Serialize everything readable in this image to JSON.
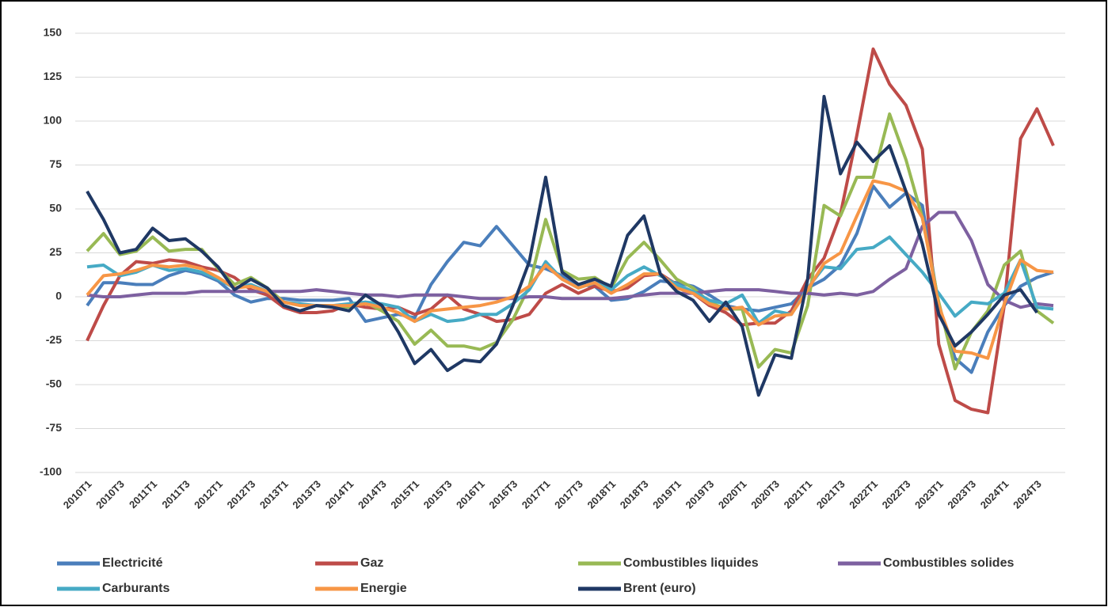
{
  "chart_data": {
    "type": "line",
    "categories": [
      "2010T1",
      null,
      "2010T3",
      null,
      "2011T1",
      null,
      "2011T3",
      null,
      "2012T1",
      null,
      "2012T3",
      null,
      "2013T1",
      null,
      "2013T3",
      null,
      "2014T1",
      null,
      "2014T3",
      null,
      "2015T1",
      null,
      "2015T3",
      null,
      "2016T1",
      null,
      "2016T3",
      null,
      "2017T1",
      null,
      "2017T3",
      null,
      "2018T1",
      null,
      "2018T3",
      null,
      "2019T1",
      null,
      "2019T3",
      null,
      "2020T1",
      null,
      "2020T3",
      null,
      "2021T1",
      null,
      "2021T3",
      null,
      "2022T1",
      null,
      "2022T3",
      null,
      "2023T1",
      null,
      "2023T3",
      null,
      "2024T1",
      null,
      "2024T3",
      null
    ],
    "ylim": [
      -100,
      150
    ],
    "yticks": [
      -100,
      -75,
      -50,
      -25,
      0,
      25,
      50,
      75,
      100,
      125,
      150
    ],
    "grid": true,
    "legend": "bottom",
    "series": [
      {
        "name": "Electricité",
        "color": "#4a7ebb",
        "values": [
          -5,
          8,
          8,
          7,
          7,
          12,
          15,
          13,
          9,
          1,
          -3,
          -1,
          -1,
          -2,
          -2,
          -2,
          -1,
          -14,
          -12,
          -10,
          -12,
          7,
          20,
          31,
          29,
          40,
          29,
          18,
          16,
          12,
          7,
          6,
          -2,
          -1,
          3,
          9,
          8,
          6,
          1,
          -5,
          -7,
          -8,
          -6,
          -4,
          5,
          10,
          18,
          36,
          63,
          51,
          59,
          52,
          -5,
          -35,
          -43,
          -20,
          -5,
          6,
          11,
          14
        ]
      },
      {
        "name": "Gaz",
        "color": "#be4b48",
        "values": [
          -25,
          -5,
          12,
          20,
          19,
          21,
          20,
          17,
          15,
          11,
          4,
          1,
          -6,
          -9,
          -9,
          -8,
          -4,
          -6,
          -7,
          -6,
          -10,
          -7,
          1,
          -7,
          -10,
          -14,
          -13,
          -10,
          2,
          7,
          2,
          6,
          3,
          5,
          12,
          13,
          7,
          2,
          -5,
          -9,
          -16,
          -15,
          -15,
          -8,
          10,
          22,
          47,
          92,
          141,
          121,
          109,
          84,
          -27,
          -59,
          -64,
          -66,
          -5,
          90,
          107,
          86
        ]
      },
      {
        "name": "Combustibles liquides",
        "color": "#98b954",
        "values": [
          26,
          36,
          24,
          26,
          34,
          26,
          27,
          27,
          16,
          7,
          11,
          5,
          -3,
          -5,
          -5,
          -5,
          -6,
          -3,
          -8,
          -14,
          -27,
          -19,
          -28,
          -28,
          -30,
          -26,
          -13,
          6,
          44,
          15,
          10,
          11,
          5,
          22,
          31,
          21,
          10,
          5,
          -3,
          -7,
          -7,
          -40,
          -30,
          -32,
          -5,
          52,
          46,
          68,
          68,
          104,
          78,
          45,
          -3,
          -41,
          -20,
          -8,
          18,
          26,
          -8,
          -15
        ]
      },
      {
        "name": "Combustibles solides",
        "color": "#7d60a0",
        "values": [
          1,
          0,
          0,
          1,
          2,
          2,
          2,
          3,
          3,
          3,
          3,
          3,
          3,
          3,
          4,
          3,
          2,
          1,
          1,
          0,
          1,
          1,
          1,
          0,
          -1,
          -1,
          -1,
          0,
          0,
          -1,
          -1,
          -1,
          -1,
          0,
          1,
          2,
          2,
          2,
          3,
          4,
          4,
          4,
          3,
          2,
          2,
          1,
          2,
          1,
          3,
          10,
          16,
          40,
          48,
          48,
          32,
          7,
          -2,
          -6,
          -4,
          -5
        ]
      },
      {
        "name": "Carburants",
        "color": "#46aac5",
        "values": [
          17,
          18,
          12,
          14,
          18,
          15,
          16,
          14,
          10,
          5,
          7,
          3,
          -3,
          -4,
          -5,
          -5,
          -4,
          -3,
          -4,
          -6,
          -14,
          -10,
          -14,
          -13,
          -10,
          -10,
          -4,
          4,
          20,
          10,
          5,
          8,
          4,
          12,
          17,
          12,
          7,
          3,
          -2,
          -4,
          1,
          -15,
          -8,
          -10,
          5,
          17,
          16,
          27,
          28,
          34,
          24,
          14,
          2,
          -11,
          -3,
          -4,
          2,
          21,
          -6,
          -7
        ]
      },
      {
        "name": "Energie",
        "color": "#f79646",
        "values": [
          1,
          12,
          13,
          15,
          18,
          17,
          18,
          16,
          11,
          5,
          6,
          3,
          -3,
          -5,
          -5,
          -5,
          -5,
          -4,
          -6,
          -9,
          -14,
          -8,
          -7,
          -6,
          -5,
          -3,
          0,
          6,
          18,
          10,
          5,
          8,
          2,
          7,
          13,
          13,
          5,
          2,
          -4,
          -7,
          -6,
          -16,
          -11,
          -10,
          4,
          19,
          25,
          46,
          66,
          64,
          60,
          45,
          -5,
          -31,
          -32,
          -35,
          -4,
          21,
          15,
          14
        ]
      },
      {
        "name": "Brent (euro)",
        "color": "#1f3864",
        "values": [
          60,
          44,
          25,
          27,
          39,
          32,
          33,
          26,
          17,
          4,
          10,
          5,
          -5,
          -8,
          -5,
          -6,
          -8,
          1,
          -5,
          -20,
          -38,
          -30,
          -42,
          -36,
          -37,
          -27,
          -5,
          20,
          68,
          14,
          7,
          10,
          6,
          35,
          46,
          13,
          3,
          -2,
          -14,
          -3,
          -17,
          -56,
          -33,
          -35,
          10,
          114,
          70,
          88,
          77,
          86,
          60,
          30,
          -10,
          -28,
          -20,
          -10,
          1,
          4,
          -9,
          null
        ]
      }
    ]
  }
}
